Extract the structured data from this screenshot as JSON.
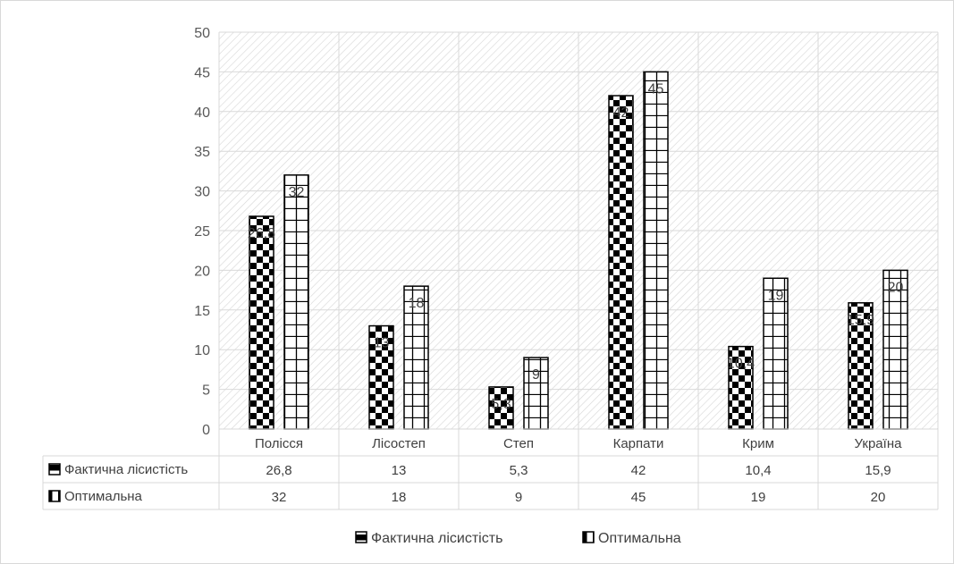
{
  "chart_data": {
    "type": "bar",
    "categories": [
      "Полісся",
      "Лісостеп",
      "Степ",
      "Карпати",
      "Крим",
      "Україна"
    ],
    "series": [
      {
        "name": "Фактична лісистість",
        "values": [
          26.8,
          13,
          5.3,
          42,
          10.4,
          15.9
        ],
        "value_labels": [
          "26,8",
          "13",
          "5,3",
          "42",
          "10,4",
          "15,9"
        ],
        "pattern": "checkerboard"
      },
      {
        "name": "Оптимальна",
        "values": [
          32,
          18,
          9,
          45,
          19,
          20
        ],
        "value_labels": [
          "32",
          "18",
          "9",
          "45",
          "19",
          "20"
        ],
        "pattern": "grid"
      }
    ],
    "ylim": [
      0,
      50
    ],
    "yticks": [
      0,
      5,
      10,
      15,
      20,
      25,
      30,
      35,
      40,
      45,
      50
    ],
    "grid": true,
    "data_table": true,
    "legend_position": "bottom",
    "colors": {
      "bar_fill": "#000000",
      "bar_bg": "#ffffff",
      "plot_hatch": "#d9d9d9",
      "grid": "#d9d9d9",
      "text": "#404040",
      "axis_text": "#595959"
    }
  }
}
